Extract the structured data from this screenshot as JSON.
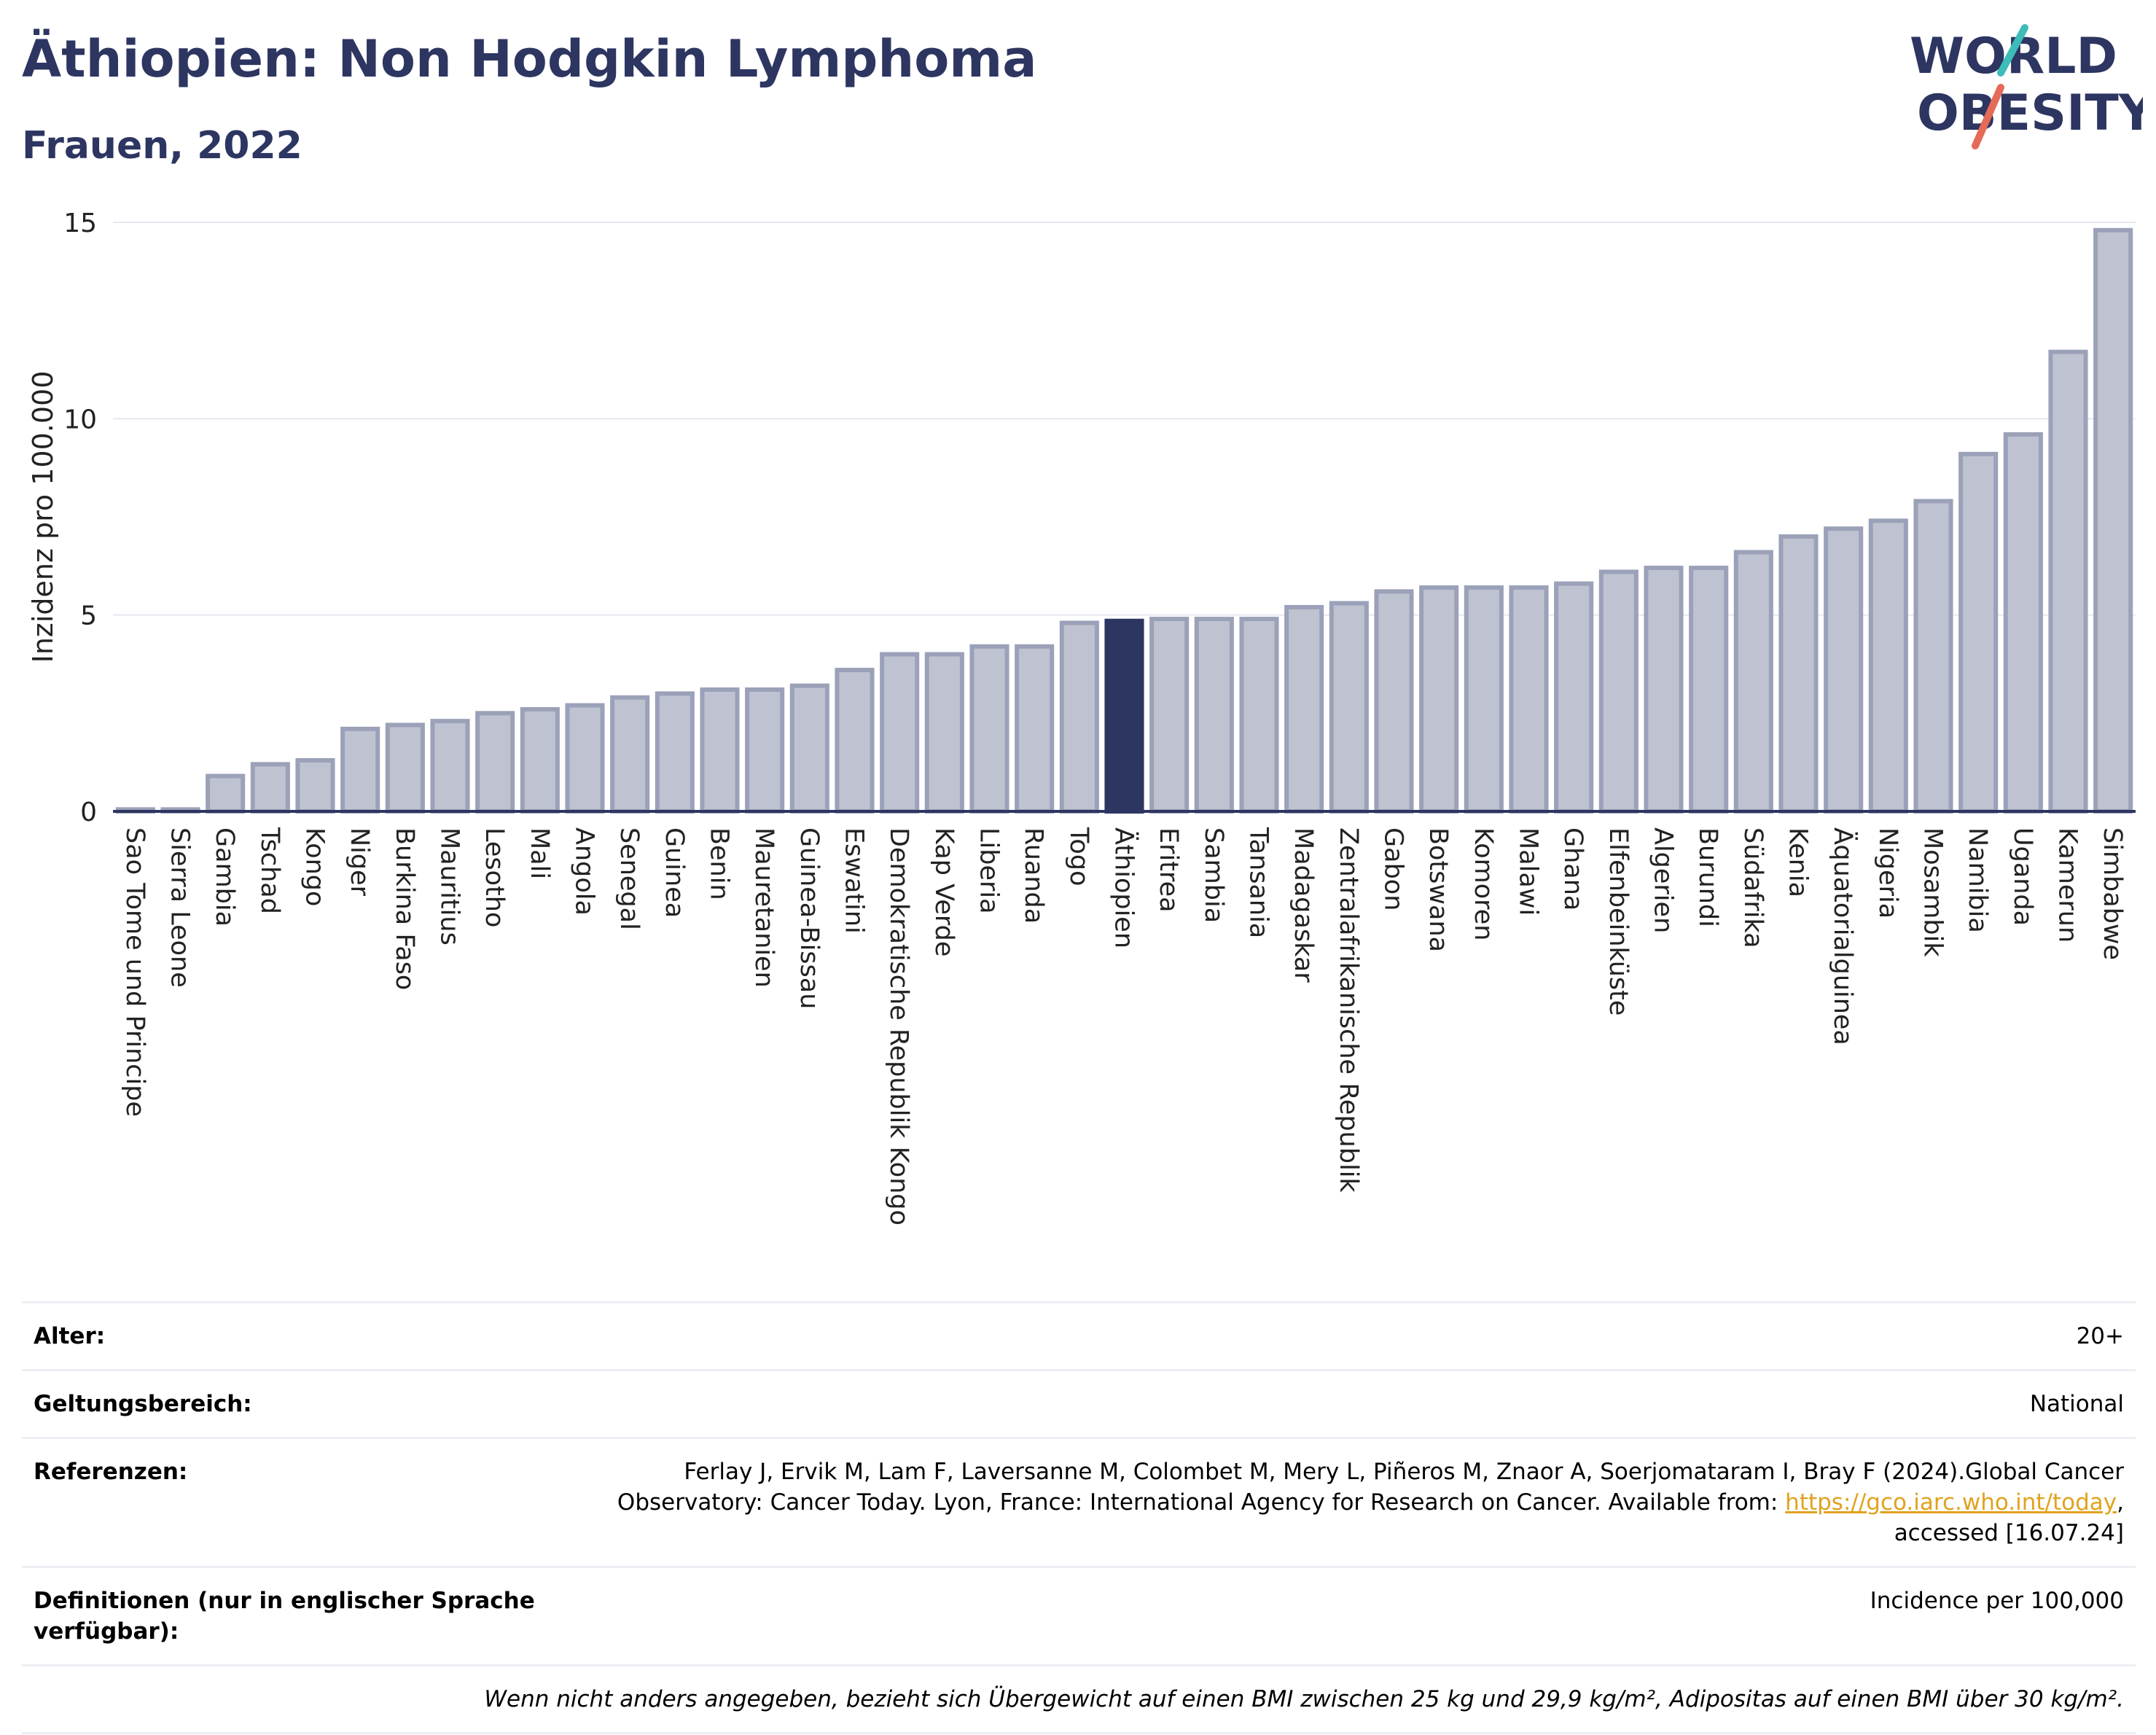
{
  "title": "Äthiopien: Non Hodgkin Lymphoma",
  "subtitle": "Frauen, 2022",
  "logo": {
    "line1": "WORLD",
    "line2": "OBESITY"
  },
  "colors": {
    "accent": "#2d3561",
    "bar_fill": "#bfc3d1",
    "bar_stroke": "#9ba1b8",
    "link": "#e0a31e"
  },
  "chart_data": {
    "type": "bar",
    "ylabel": "Inzidenz pro 100.000",
    "ylim": [
      0,
      15
    ],
    "yticks": [
      0,
      5,
      10,
      15
    ],
    "highlight": "Äthiopien",
    "grid": true,
    "categories": [
      "Sao Tome und Principe",
      "Sierra Leone",
      "Gambia",
      "Tschad",
      "Kongo",
      "Niger",
      "Burkina Faso",
      "Mauritius",
      "Lesotho",
      "Mali",
      "Angola",
      "Senegal",
      "Guinea",
      "Benin",
      "Mauretanien",
      "Guinea-Bissau",
      "Eswatini",
      "Demokratische Republik Kongo",
      "Kap Verde",
      "Liberia",
      "Ruanda",
      "Togo",
      "Äthiopien",
      "Eritrea",
      "Sambia",
      "Tansania",
      "Madagaskar",
      "Zentralafrikanische Republik",
      "Gabon",
      "Botswana",
      "Komoren",
      "Malawi",
      "Ghana",
      "Elfenbeinküste",
      "Algerien",
      "Burundi",
      "Südafrika",
      "Kenia",
      "Äquatorialguinea",
      "Nigeria",
      "Mosambik",
      "Namibia",
      "Uganda",
      "Kamerun",
      "Simbabwe"
    ],
    "values": [
      0.05,
      0.05,
      0.9,
      1.2,
      1.3,
      2.1,
      2.2,
      2.3,
      2.5,
      2.6,
      2.7,
      2.9,
      3.0,
      3.1,
      3.1,
      3.2,
      3.6,
      4.0,
      4.0,
      4.2,
      4.2,
      4.8,
      4.85,
      4.9,
      4.9,
      4.9,
      5.2,
      5.3,
      5.6,
      5.7,
      5.7,
      5.7,
      5.8,
      6.1,
      6.2,
      6.2,
      6.6,
      7.0,
      7.2,
      7.4,
      7.9,
      9.1,
      9.6,
      11.7,
      14.8
    ]
  },
  "info": {
    "age_label": "Alter:",
    "age_value": "20+",
    "scope_label": "Geltungsbereich:",
    "scope_value": "National",
    "ref_label": "Referenzen:",
    "ref_text": "Ferlay J, Ervik M, Lam F, Laversanne M, Colombet M, Mery L, Piñeros M, Znaor A, Soerjomataram I, Bray F (2024).Global Cancer Observatory: Cancer Today. Lyon, France: International Agency for Research on Cancer. Available from: ",
    "ref_link": "https://gco.iarc.who.int/today",
    "ref_tail": ", accessed [16.07.24]",
    "def_label": "Definitionen (nur in englischer Sprache verfügbar):",
    "def_value": "Incidence per 100,000",
    "note": "Wenn nicht anders angegeben, bezieht sich Übergewicht auf einen BMI zwischen 25 kg und 29,9 kg/m², Adipositas auf einen BMI über 30 kg/m²."
  }
}
